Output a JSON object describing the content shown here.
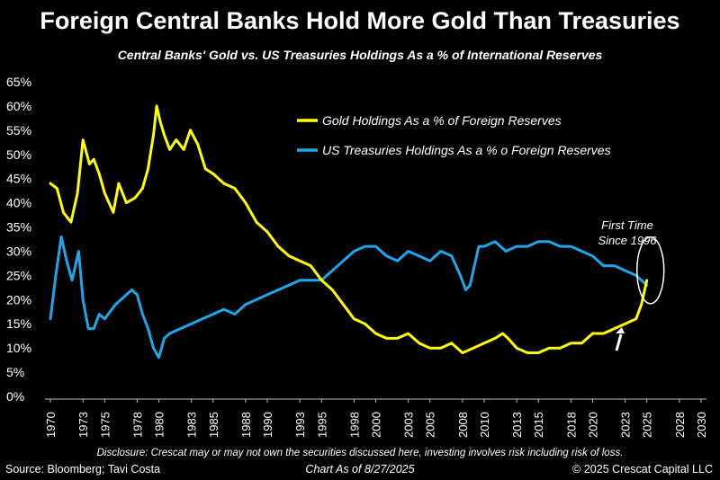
{
  "header": {
    "title": "Foreign Central Banks Hold More Gold Than Treasuries",
    "subtitle": "Central Banks' Gold vs. US Treasuries Holdings As a % of International Reserves"
  },
  "footer": {
    "disclosure": "Disclosure: Crescat may or may not own the securities discussed here, investing involves risk including risk of loss.",
    "source": "Source: Bloomberg; Tavi Costa",
    "as_of": "Chart As of 8/27/2025",
    "copyright": "© 2025 Crescat Capital LLC"
  },
  "chart_data": {
    "type": "line",
    "title": "",
    "xlabel": "",
    "ylabel": "",
    "xlim": [
      1969.5,
      2030.5
    ],
    "ylim": [
      0,
      65
    ],
    "x_ticks": [
      1970,
      1973,
      1975,
      1978,
      1980,
      1983,
      1985,
      1988,
      1990,
      1993,
      1995,
      1998,
      2000,
      2003,
      2005,
      2008,
      2010,
      2013,
      2015,
      2018,
      2020,
      2023,
      2025,
      2028,
      2030
    ],
    "y_ticks": [
      0,
      5,
      10,
      15,
      20,
      25,
      30,
      35,
      40,
      45,
      50,
      55,
      60,
      65
    ],
    "y_tick_format": "%",
    "grid": false,
    "legend_position": "top-right",
    "series": [
      {
        "name": "Gold Holdings As a % of Foreign Reserves",
        "color": "#ffff00",
        "x": [
          1970.0,
          1970.6,
          1971.2,
          1971.9,
          1972.5,
          1973.0,
          1973.6,
          1974.0,
          1974.5,
          1975.0,
          1975.8,
          1976.3,
          1977.0,
          1977.8,
          1978.5,
          1979.0,
          1979.5,
          1979.8,
          1980.1,
          1980.5,
          1981.0,
          1981.6,
          1982.3,
          1982.9,
          1983.6,
          1984.3,
          1985.0,
          1986.0,
          1987.0,
          1988.0,
          1989.0,
          1990.0,
          1991.0,
          1992.0,
          1993.0,
          1994.0,
          1995.0,
          1996.0,
          1997.0,
          1998.0,
          1999.0,
          2000.0,
          2001.0,
          2002.0,
          2003.0,
          2004.0,
          2005.0,
          2006.0,
          2007.0,
          2008.0,
          2009.0,
          2010.0,
          2011.0,
          2011.7,
          2012.2,
          2013.0,
          2014.0,
          2015.0,
          2016.0,
          2017.0,
          2018.0,
          2019.0,
          2020.0,
          2021.0,
          2022.0,
          2023.0,
          2024.0,
          2024.5,
          2025.0
        ],
        "values": [
          44,
          43,
          38,
          36,
          42,
          53,
          48,
          49,
          46,
          42,
          38,
          44,
          40,
          41,
          43,
          47,
          54,
          60,
          57,
          54,
          51,
          53,
          51,
          55,
          52,
          47,
          46,
          44,
          43,
          40,
          36,
          34,
          31,
          29,
          28,
          27,
          24,
          22,
          19,
          16,
          15,
          13,
          12,
          12,
          13,
          11,
          10,
          10,
          11,
          9,
          10,
          11,
          12,
          13,
          12,
          10,
          9,
          9,
          10,
          10,
          11,
          11,
          13,
          13,
          14,
          15,
          16,
          19,
          24
        ]
      },
      {
        "name": "US Treasuries Holdings As a % o Foreign Reserves",
        "color": "#1ea6ec",
        "x": [
          1970.0,
          1970.5,
          1971.0,
          1971.5,
          1972.0,
          1972.6,
          1973.0,
          1973.5,
          1974.0,
          1974.5,
          1975.0,
          1976.0,
          1977.0,
          1977.5,
          1978.0,
          1978.5,
          1979.0,
          1979.5,
          1980.0,
          1980.5,
          1981.0,
          1982.0,
          1983.0,
          1984.0,
          1985.0,
          1986.0,
          1987.0,
          1988.0,
          1989.0,
          1990.0,
          1991.0,
          1992.0,
          1993.0,
          1994.0,
          1995.0,
          1996.0,
          1997.0,
          1998.0,
          1999.0,
          2000.0,
          2001.0,
          2002.0,
          2003.0,
          2004.0,
          2005.0,
          2006.0,
          2007.0,
          2007.8,
          2008.3,
          2008.7,
          2009.5,
          2010.0,
          2011.0,
          2012.0,
          2013.0,
          2014.0,
          2015.0,
          2016.0,
          2017.0,
          2018.0,
          2019.0,
          2020.0,
          2021.0,
          2022.0,
          2023.0,
          2024.0,
          2025.0
        ],
        "values": [
          16,
          25,
          33,
          28,
          24,
          30,
          20,
          14,
          14,
          17,
          16,
          19,
          21,
          22,
          21,
          17,
          14,
          10,
          8,
          12,
          13,
          14,
          15,
          16,
          17,
          18,
          17,
          19,
          20,
          21,
          22,
          23,
          24,
          24,
          24,
          26,
          28,
          30,
          31,
          31,
          29,
          28,
          30,
          29,
          28,
          30,
          29,
          25,
          22,
          23,
          31,
          31,
          32,
          30,
          31,
          31,
          32,
          32,
          31,
          31,
          30,
          29,
          27,
          27,
          26,
          25,
          23
        ]
      }
    ],
    "annotations": [
      {
        "text_lines": [
          "First Time",
          "Since 1996"
        ],
        "target_x": 2025.0,
        "target_y": 24
      }
    ]
  }
}
